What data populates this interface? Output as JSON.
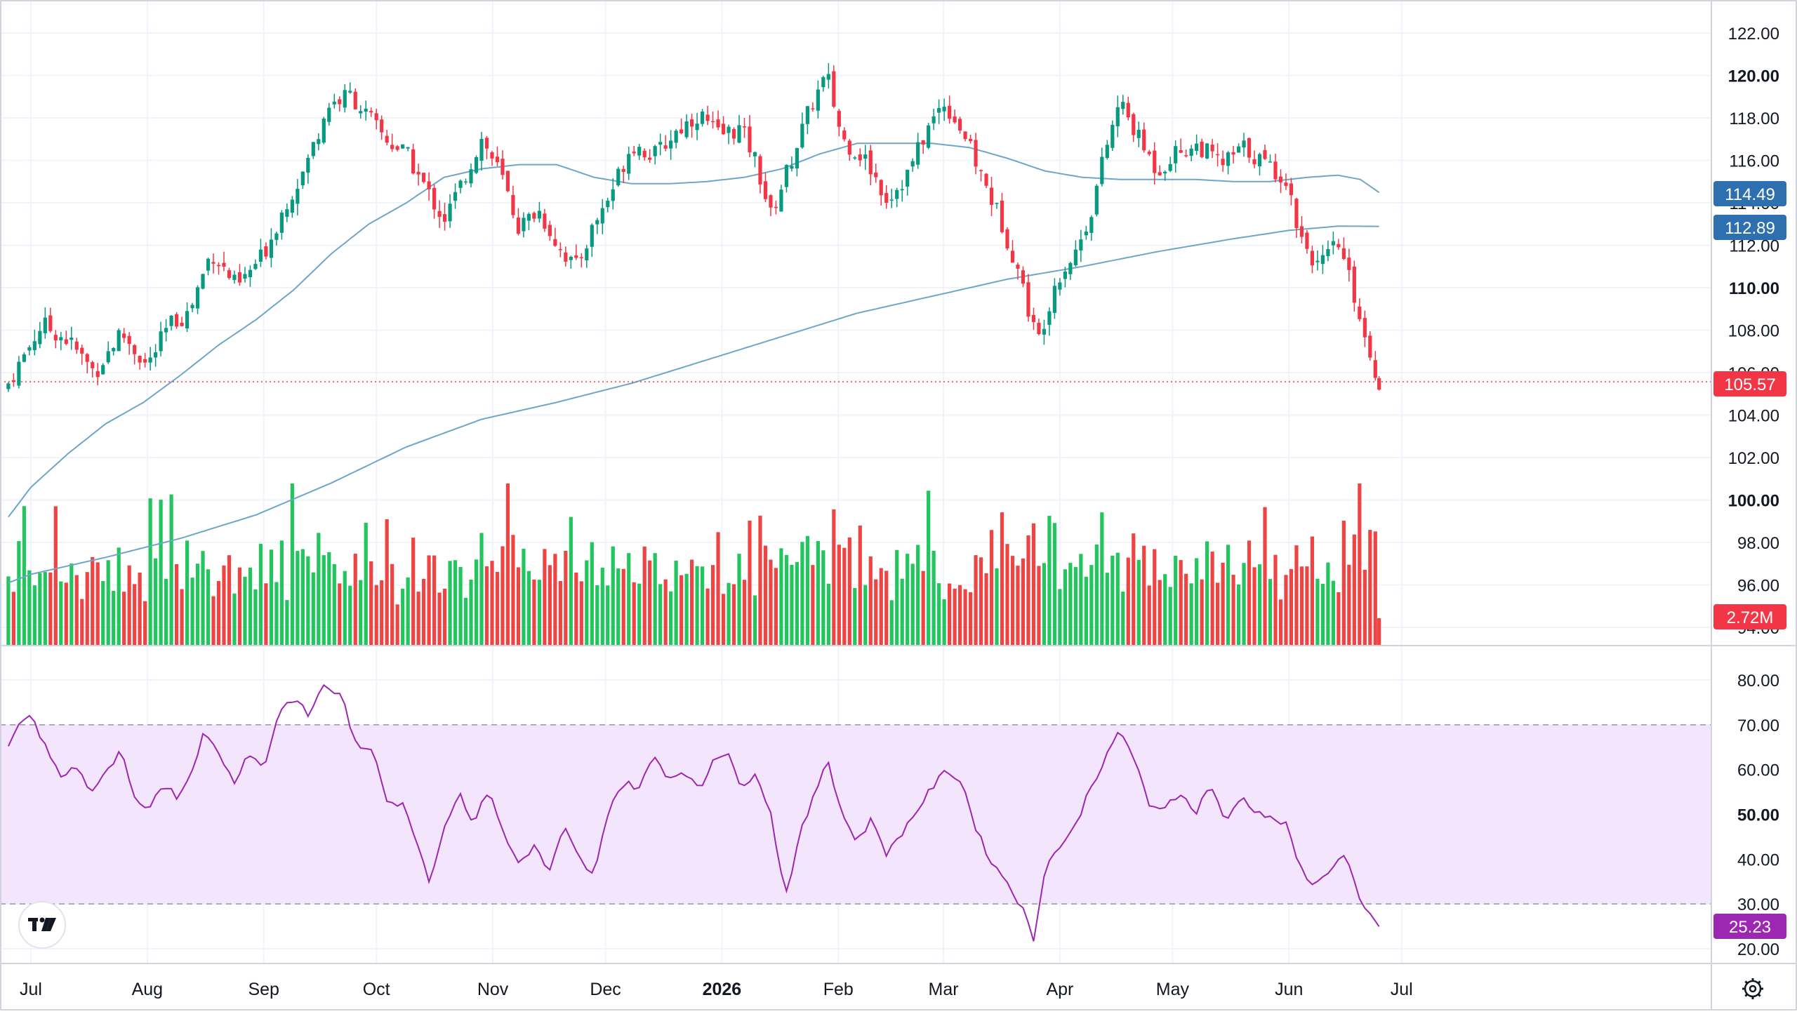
{
  "chart_data": {
    "type": "candlestick",
    "price_axis": {
      "ylim": [
        93.0,
        123.0
      ],
      "ticks": [
        "122.00",
        "120.00",
        "118.00",
        "116.00",
        "114.00",
        "112.00",
        "110.00",
        "108.00",
        "106.00",
        "104.00",
        "102.00",
        "100.00",
        "98.00",
        "96.00",
        "94.00"
      ],
      "bold_ticks": [
        "120.00",
        "110.00",
        "100.00"
      ]
    },
    "rsi_axis": {
      "ylim": [
        17.0,
        85.0
      ],
      "ticks": [
        "80.00",
        "70.00",
        "60.00",
        "50.00",
        "40.00",
        "30.00",
        "20.00"
      ],
      "bold_ticks": [
        "50.00"
      ],
      "band": [
        30,
        70
      ]
    },
    "time_axis": [
      {
        "label": "Jul",
        "day": 0,
        "bold": false
      },
      {
        "label": "Aug",
        "day": 31,
        "bold": false
      },
      {
        "label": "Sep",
        "day": 62,
        "bold": false
      },
      {
        "label": "Oct",
        "day": 92,
        "bold": false
      },
      {
        "label": "Nov",
        "day": 123,
        "bold": false
      },
      {
        "label": "Dec",
        "day": 153,
        "bold": false
      },
      {
        "label": "2026",
        "day": 184,
        "bold": true
      },
      {
        "label": "Feb",
        "day": 215,
        "bold": false
      },
      {
        "label": "Mar",
        "day": 243,
        "bold": false
      },
      {
        "label": "Apr",
        "day": 274,
        "bold": false
      },
      {
        "label": "May",
        "day": 304,
        "bold": false
      },
      {
        "label": "Jun",
        "day": 335,
        "bold": false
      },
      {
        "label": "Jul",
        "day": 365,
        "bold": false
      }
    ],
    "badges": {
      "ma_fast": {
        "text": "114.49",
        "color": "#2e6fb0"
      },
      "ma_slow": {
        "text": "112.89",
        "color": "#2e6fb0"
      },
      "last_price": {
        "text": "105.57",
        "value": 105.57,
        "color": "#f23645"
      },
      "volume": {
        "text": "2.72M",
        "color": "#f23645"
      },
      "rsi": {
        "text": "25.23",
        "color": "#9c27b0"
      }
    },
    "price_anchors": [
      {
        "day": -6,
        "close": 105.5
      },
      {
        "day": 3,
        "close": 108.3
      },
      {
        "day": 10,
        "close": 107.5
      },
      {
        "day": 17,
        "close": 106.0
      },
      {
        "day": 24,
        "close": 107.9
      },
      {
        "day": 31,
        "close": 106.3
      },
      {
        "day": 37,
        "close": 108.3
      },
      {
        "day": 42,
        "close": 108.8
      },
      {
        "day": 48,
        "close": 111.7
      },
      {
        "day": 55,
        "close": 110.0
      },
      {
        "day": 62,
        "close": 111.6
      },
      {
        "day": 68,
        "close": 114.0
      },
      {
        "day": 73,
        "close": 115.6
      },
      {
        "day": 79,
        "close": 118.6
      },
      {
        "day": 85,
        "close": 119.1
      },
      {
        "day": 90,
        "close": 118.0
      },
      {
        "day": 95,
        "close": 116.9
      },
      {
        "day": 100,
        "close": 116.3
      },
      {
        "day": 105,
        "close": 114.7
      },
      {
        "day": 110,
        "close": 113.2
      },
      {
        "day": 115,
        "close": 115.0
      },
      {
        "day": 120,
        "close": 117.0
      },
      {
        "day": 125,
        "close": 115.4
      },
      {
        "day": 130,
        "close": 112.8
      },
      {
        "day": 135,
        "close": 113.7
      },
      {
        "day": 140,
        "close": 112.1
      },
      {
        "day": 145,
        "close": 110.9
      },
      {
        "day": 150,
        "close": 113.0
      },
      {
        "day": 154,
        "close": 114.3
      },
      {
        "day": 160,
        "close": 116.8
      },
      {
        "day": 166,
        "close": 116.2
      },
      {
        "day": 172,
        "close": 117.4
      },
      {
        "day": 178,
        "close": 118.2
      },
      {
        "day": 183,
        "close": 117.2
      },
      {
        "day": 189,
        "close": 117.5
      },
      {
        "day": 193,
        "close": 116.0
      },
      {
        "day": 197,
        "close": 113.4
      },
      {
        "day": 202,
        "close": 115.8
      },
      {
        "day": 208,
        "close": 118.7
      },
      {
        "day": 212,
        "close": 120.0
      },
      {
        "day": 216,
        "close": 117.0
      },
      {
        "day": 222,
        "close": 116.1
      },
      {
        "day": 228,
        "close": 114.2
      },
      {
        "day": 233,
        "close": 115.2
      },
      {
        "day": 238,
        "close": 117.2
      },
      {
        "day": 243,
        "close": 118.8
      },
      {
        "day": 248,
        "close": 117.4
      },
      {
        "day": 253,
        "close": 115.3
      },
      {
        "day": 258,
        "close": 113.3
      },
      {
        "day": 263,
        "close": 110.8
      },
      {
        "day": 268,
        "close": 107.4
      },
      {
        "day": 273,
        "close": 110.4
      },
      {
        "day": 278,
        "close": 111.6
      },
      {
        "day": 282,
        "close": 113.4
      },
      {
        "day": 286,
        "close": 116.4
      },
      {
        "day": 290,
        "close": 118.8
      },
      {
        "day": 295,
        "close": 117.0
      },
      {
        "day": 300,
        "close": 115.5
      },
      {
        "day": 305,
        "close": 116.4
      },
      {
        "day": 311,
        "close": 116.7
      },
      {
        "day": 317,
        "close": 115.8
      },
      {
        "day": 323,
        "close": 116.6
      },
      {
        "day": 329,
        "close": 115.8
      },
      {
        "day": 334,
        "close": 115.2
      },
      {
        "day": 338,
        "close": 112.5
      },
      {
        "day": 343,
        "close": 110.9
      },
      {
        "day": 348,
        "close": 112.1
      },
      {
        "day": 352,
        "close": 109.9
      },
      {
        "day": 356,
        "close": 107.2
      },
      {
        "day": 359,
        "close": 105.57
      }
    ],
    "ma_fast": [
      {
        "day": -6,
        "value": 99.2
      },
      {
        "day": 0,
        "value": 100.6
      },
      {
        "day": 10,
        "value": 102.2
      },
      {
        "day": 20,
        "value": 103.6
      },
      {
        "day": 30,
        "value": 104.6
      },
      {
        "day": 40,
        "value": 105.9
      },
      {
        "day": 50,
        "value": 107.3
      },
      {
        "day": 60,
        "value": 108.5
      },
      {
        "day": 70,
        "value": 109.9
      },
      {
        "day": 80,
        "value": 111.6
      },
      {
        "day": 90,
        "value": 113.0
      },
      {
        "day": 100,
        "value": 114.0
      },
      {
        "day": 110,
        "value": 115.2
      },
      {
        "day": 120,
        "value": 115.6
      },
      {
        "day": 130,
        "value": 115.8
      },
      {
        "day": 140,
        "value": 115.8
      },
      {
        "day": 150,
        "value": 115.2
      },
      {
        "day": 160,
        "value": 114.9
      },
      {
        "day": 170,
        "value": 114.9
      },
      {
        "day": 180,
        "value": 115.0
      },
      {
        "day": 190,
        "value": 115.2
      },
      {
        "day": 200,
        "value": 115.6
      },
      {
        "day": 210,
        "value": 116.3
      },
      {
        "day": 220,
        "value": 116.8
      },
      {
        "day": 230,
        "value": 116.8
      },
      {
        "day": 240,
        "value": 116.8
      },
      {
        "day": 250,
        "value": 116.6
      },
      {
        "day": 260,
        "value": 116.1
      },
      {
        "day": 270,
        "value": 115.5
      },
      {
        "day": 280,
        "value": 115.2
      },
      {
        "day": 290,
        "value": 115.1
      },
      {
        "day": 300,
        "value": 115.1
      },
      {
        "day": 310,
        "value": 115.1
      },
      {
        "day": 320,
        "value": 115.0
      },
      {
        "day": 330,
        "value": 115.0
      },
      {
        "day": 340,
        "value": 115.2
      },
      {
        "day": 348,
        "value": 115.3
      },
      {
        "day": 354,
        "value": 115.1
      },
      {
        "day": 359,
        "value": 114.49
      }
    ],
    "ma_slow": [
      {
        "day": -6,
        "value": 96.1
      },
      {
        "day": 0,
        "value": 96.5
      },
      {
        "day": 20,
        "value": 97.3
      },
      {
        "day": 40,
        "value": 98.2
      },
      {
        "day": 60,
        "value": 99.3
      },
      {
        "day": 80,
        "value": 100.8
      },
      {
        "day": 100,
        "value": 102.5
      },
      {
        "day": 120,
        "value": 103.8
      },
      {
        "day": 140,
        "value": 104.6
      },
      {
        "day": 160,
        "value": 105.5
      },
      {
        "day": 180,
        "value": 106.6
      },
      {
        "day": 200,
        "value": 107.7
      },
      {
        "day": 220,
        "value": 108.8
      },
      {
        "day": 240,
        "value": 109.6
      },
      {
        "day": 260,
        "value": 110.4
      },
      {
        "day": 280,
        "value": 111.0
      },
      {
        "day": 300,
        "value": 111.7
      },
      {
        "day": 320,
        "value": 112.3
      },
      {
        "day": 335,
        "value": 112.7
      },
      {
        "day": 348,
        "value": 112.9
      },
      {
        "day": 359,
        "value": 112.89
      }
    ],
    "rsi_anchors": [
      {
        "day": -6,
        "value": 65
      },
      {
        "day": -1,
        "value": 73
      },
      {
        "day": 3,
        "value": 67
      },
      {
        "day": 8,
        "value": 58
      },
      {
        "day": 12,
        "value": 61
      },
      {
        "day": 16,
        "value": 55
      },
      {
        "day": 20,
        "value": 59
      },
      {
        "day": 24,
        "value": 64
      },
      {
        "day": 28,
        "value": 52
      },
      {
        "day": 31,
        "value": 51
      },
      {
        "day": 35,
        "value": 57
      },
      {
        "day": 39,
        "value": 54
      },
      {
        "day": 42,
        "value": 58
      },
      {
        "day": 46,
        "value": 68
      },
      {
        "day": 50,
        "value": 64
      },
      {
        "day": 54,
        "value": 57
      },
      {
        "day": 58,
        "value": 64
      },
      {
        "day": 62,
        "value": 60
      },
      {
        "day": 66,
        "value": 73
      },
      {
        "day": 70,
        "value": 76
      },
      {
        "day": 74,
        "value": 72
      },
      {
        "day": 78,
        "value": 79
      },
      {
        "day": 83,
        "value": 76
      },
      {
        "day": 87,
        "value": 64
      },
      {
        "day": 91,
        "value": 65
      },
      {
        "day": 95,
        "value": 53
      },
      {
        "day": 99,
        "value": 52
      },
      {
        "day": 103,
        "value": 44
      },
      {
        "day": 106,
        "value": 35
      },
      {
        "day": 110,
        "value": 47
      },
      {
        "day": 114,
        "value": 55
      },
      {
        "day": 118,
        "value": 48
      },
      {
        "day": 122,
        "value": 56
      },
      {
        "day": 126,
        "value": 45
      },
      {
        "day": 130,
        "value": 39
      },
      {
        "day": 134,
        "value": 43
      },
      {
        "day": 138,
        "value": 37
      },
      {
        "day": 142,
        "value": 47
      },
      {
        "day": 146,
        "value": 40
      },
      {
        "day": 150,
        "value": 36
      },
      {
        "day": 154,
        "value": 52
      },
      {
        "day": 158,
        "value": 57
      },
      {
        "day": 162,
        "value": 56
      },
      {
        "day": 166,
        "value": 63
      },
      {
        "day": 170,
        "value": 58
      },
      {
        "day": 174,
        "value": 60
      },
      {
        "day": 178,
        "value": 55
      },
      {
        "day": 182,
        "value": 63
      },
      {
        "day": 186,
        "value": 64
      },
      {
        "day": 189,
        "value": 55
      },
      {
        "day": 193,
        "value": 60
      },
      {
        "day": 197,
        "value": 50
      },
      {
        "day": 201,
        "value": 32
      },
      {
        "day": 205,
        "value": 46
      },
      {
        "day": 209,
        "value": 55
      },
      {
        "day": 212,
        "value": 63
      },
      {
        "day": 216,
        "value": 50
      },
      {
        "day": 220,
        "value": 44
      },
      {
        "day": 224,
        "value": 49
      },
      {
        "day": 228,
        "value": 41
      },
      {
        "day": 232,
        "value": 46
      },
      {
        "day": 236,
        "value": 51
      },
      {
        "day": 240,
        "value": 56
      },
      {
        "day": 244,
        "value": 60
      },
      {
        "day": 248,
        "value": 57
      },
      {
        "day": 252,
        "value": 46
      },
      {
        "day": 256,
        "value": 39
      },
      {
        "day": 260,
        "value": 35
      },
      {
        "day": 264,
        "value": 29
      },
      {
        "day": 267,
        "value": 22
      },
      {
        "day": 270,
        "value": 38
      },
      {
        "day": 274,
        "value": 43
      },
      {
        "day": 278,
        "value": 47
      },
      {
        "day": 282,
        "value": 56
      },
      {
        "day": 286,
        "value": 62
      },
      {
        "day": 290,
        "value": 69
      },
      {
        "day": 294,
        "value": 62
      },
      {
        "day": 298,
        "value": 51
      },
      {
        "day": 302,
        "value": 52
      },
      {
        "day": 306,
        "value": 55
      },
      {
        "day": 310,
        "value": 50
      },
      {
        "day": 314,
        "value": 57
      },
      {
        "day": 318,
        "value": 48
      },
      {
        "day": 322,
        "value": 54
      },
      {
        "day": 326,
        "value": 51
      },
      {
        "day": 330,
        "value": 49
      },
      {
        "day": 334,
        "value": 48
      },
      {
        "day": 338,
        "value": 38
      },
      {
        "day": 342,
        "value": 34
      },
      {
        "day": 346,
        "value": 38
      },
      {
        "day": 350,
        "value": 41
      },
      {
        "day": 354,
        "value": 30
      },
      {
        "day": 357,
        "value": 27
      },
      {
        "day": 359,
        "value": 25.23
      }
    ]
  }
}
